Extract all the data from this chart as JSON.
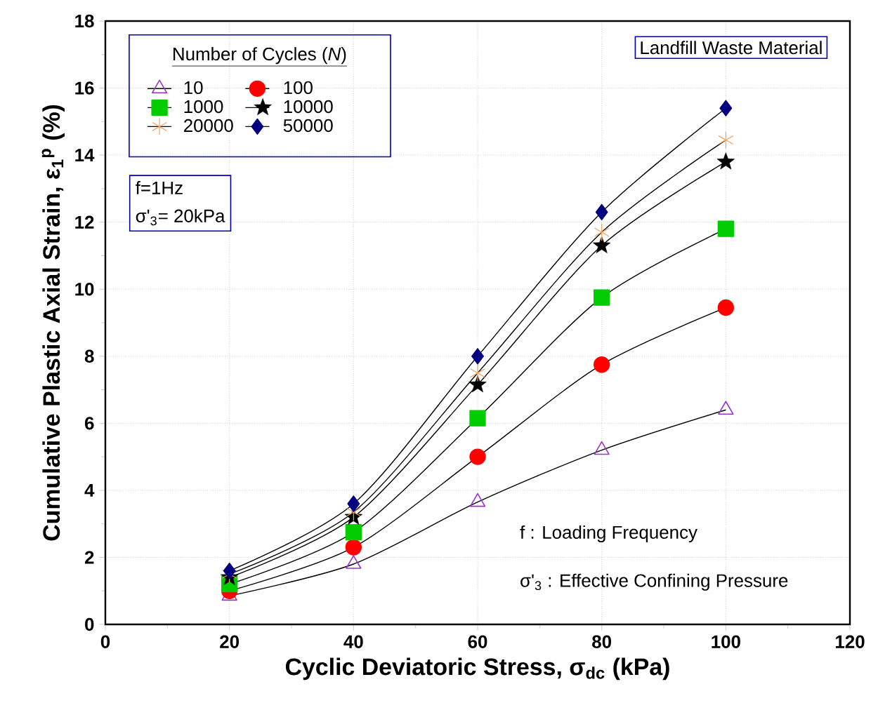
{
  "chart_data": {
    "type": "line",
    "xlabel": "Cyclic Deviatoric Stress, σ$_{dc}$ (kPa)",
    "ylabel": "Cumulative Plastic Axial Strain, ε$_{1}$$^{p}$ (%)",
    "legend_title": "Number of Cycles (*N*)",
    "x": [
      20,
      40,
      60,
      80,
      100
    ],
    "series": [
      {
        "name": "10",
        "color": "#9933cc",
        "marker": "triangle",
        "values": [
          0.85,
          1.8,
          3.65,
          5.2,
          6.4
        ]
      },
      {
        "name": "100",
        "color": "#ff0000",
        "marker": "circle",
        "values": [
          1.0,
          2.3,
          5.0,
          7.75,
          9.45
        ]
      },
      {
        "name": "1000",
        "color": "#00cc00",
        "marker": "square",
        "values": [
          1.2,
          2.75,
          6.15,
          9.75,
          11.8
        ]
      },
      {
        "name": "10000",
        "color": "#000000",
        "marker": "star",
        "values": [
          1.4,
          3.2,
          7.15,
          11.3,
          13.8
        ]
      },
      {
        "name": "20000",
        "color": "#f4a460",
        "marker": "cross",
        "values": [
          1.5,
          3.35,
          7.5,
          11.7,
          14.45
        ]
      },
      {
        "name": "50000",
        "color": "#000080",
        "marker": "diamond",
        "values": [
          1.6,
          3.6,
          8.0,
          12.3,
          15.4
        ]
      }
    ],
    "xlim": [
      0,
      120
    ],
    "xticks": [
      0,
      20,
      40,
      60,
      80,
      100,
      120
    ],
    "ylim": [
      0,
      18
    ],
    "yticks": [
      0,
      2,
      4,
      6,
      8,
      10,
      12,
      14,
      16,
      18
    ],
    "grid": true,
    "legend": "top left",
    "line_style": "solid",
    "annotations": [
      "Landfill Waste Material",
      "f=1Hz",
      "σ'$_{3}$= 20kPa",
      "f : Loading Frequency",
      "σ'$_{3}$ : Effective Confining Pressure"
    ]
  }
}
